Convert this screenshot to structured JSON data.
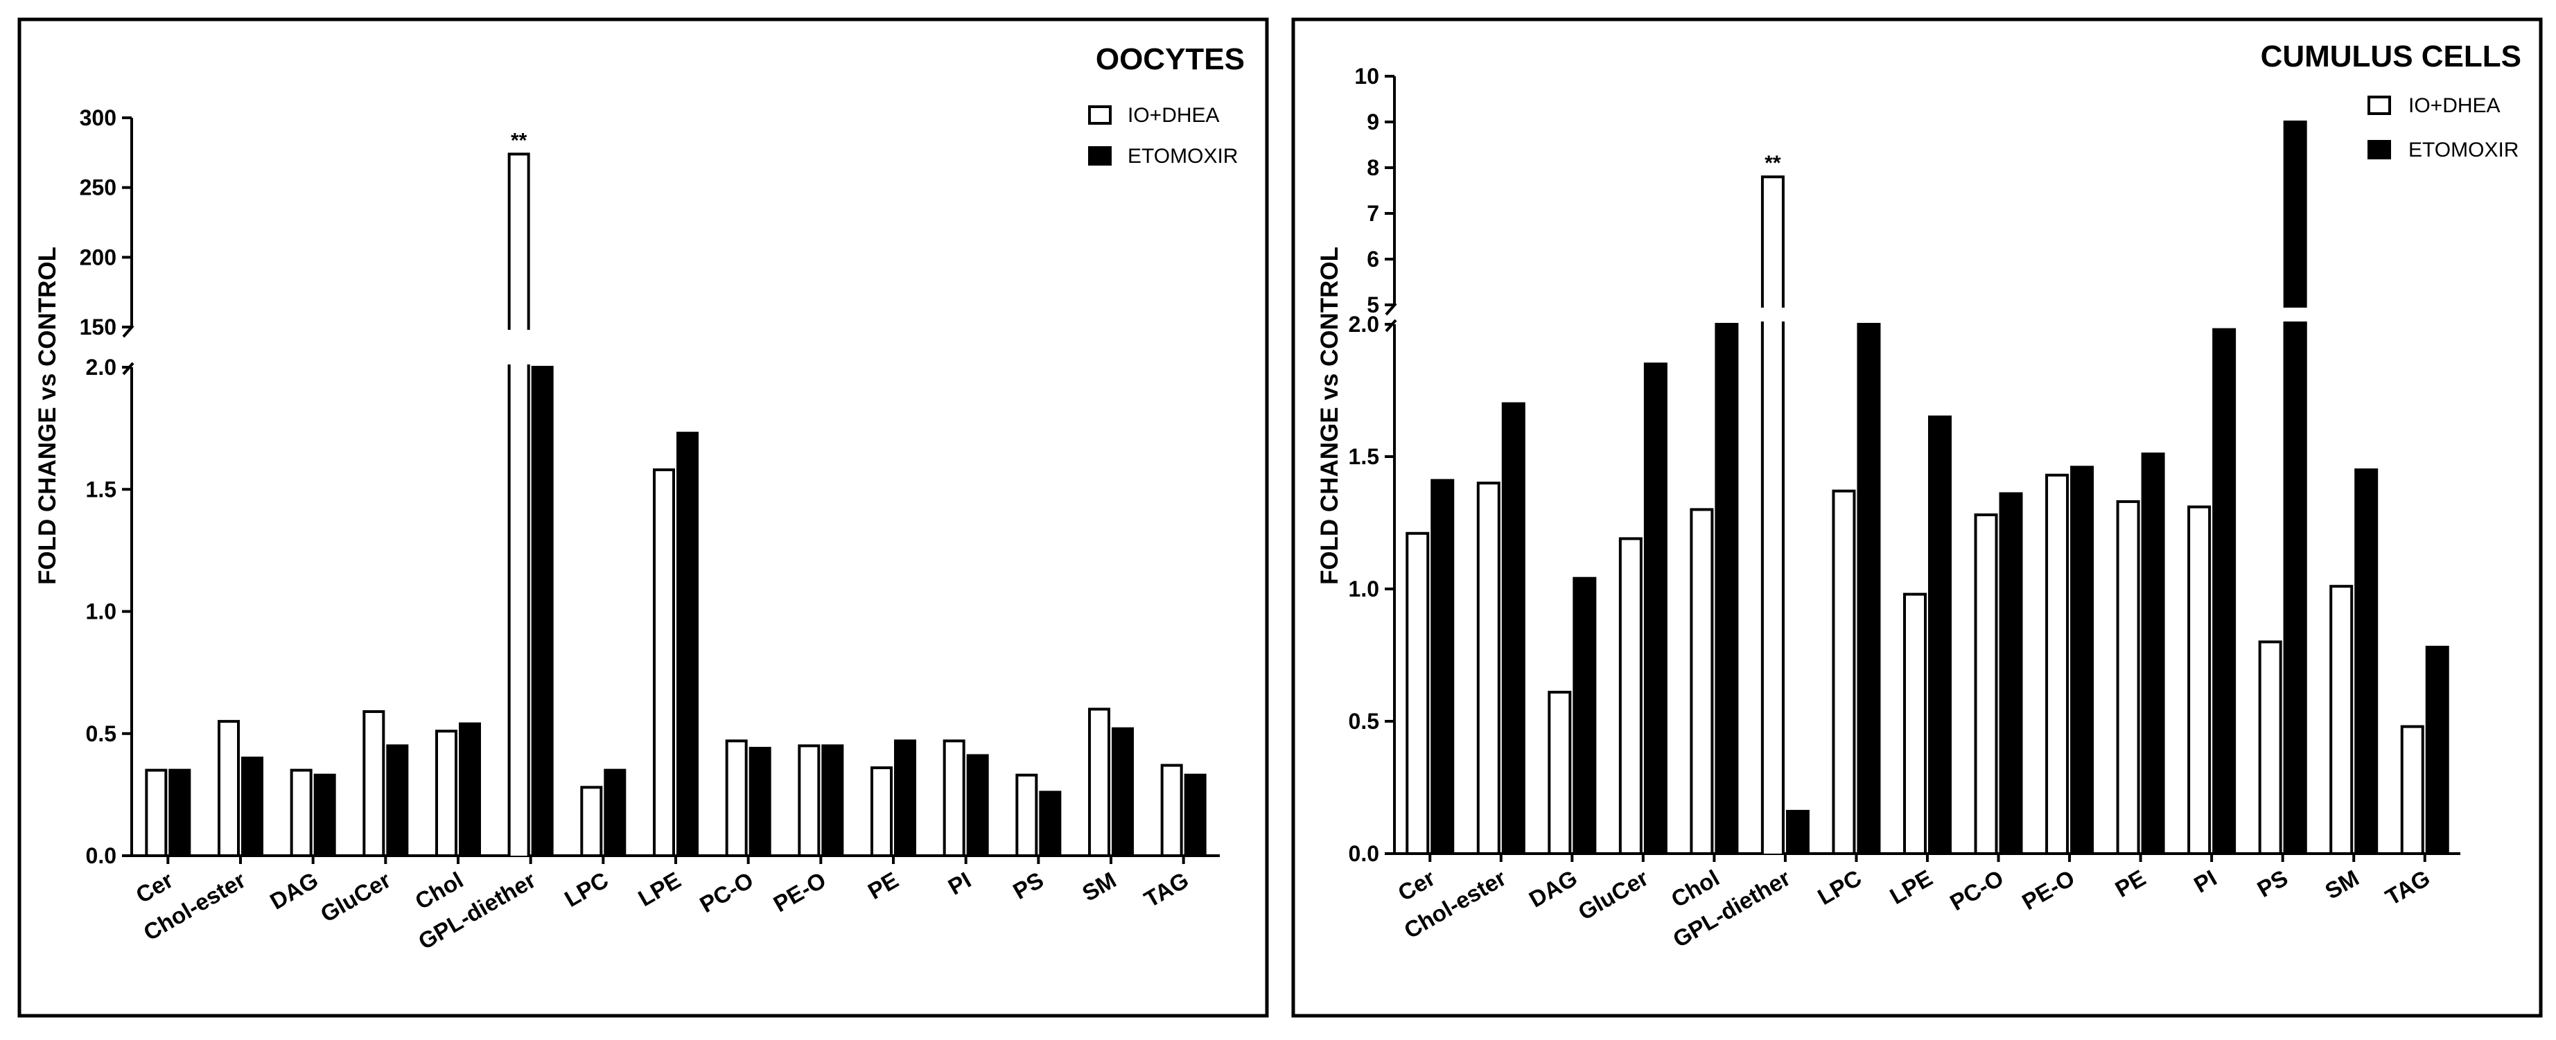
{
  "chart_data": [
    {
      "type": "bar",
      "title": "OOCYTES",
      "xlabel": "",
      "ylabel": "FOLD CHANGE vs CONTROL",
      "categories": [
        "Cer",
        "Chol-ester",
        "DAG",
        "GluCer",
        "Chol",
        "GPL-diether",
        "LPC",
        "LPE",
        "PC-O",
        "PE-O",
        "PE",
        "PI",
        "PS",
        "SM",
        "TAG"
      ],
      "series": [
        {
          "name": "IO+DHEA",
          "fill": "#ffffff",
          "values": [
            0.35,
            0.55,
            0.35,
            0.59,
            0.51,
            274,
            0.28,
            1.58,
            0.47,
            0.45,
            0.36,
            0.47,
            0.33,
            0.6,
            0.37
          ]
        },
        {
          "name": "ETOMOXIR",
          "fill": "#000000",
          "values": [
            0.35,
            0.4,
            0.33,
            0.45,
            0.54,
            2.0,
            0.35,
            1.73,
            0.44,
            0.45,
            0.47,
            0.41,
            0.26,
            0.52,
            0.33
          ]
        }
      ],
      "y_axis": {
        "broken": true,
        "lower": {
          "range": [
            0,
            2.0
          ],
          "ticks": [
            "0.0",
            "0.5",
            "1.0",
            "1.5",
            "2.0"
          ]
        },
        "upper": {
          "range": [
            150,
            300
          ],
          "ticks": [
            "150",
            "200",
            "250",
            "300"
          ]
        }
      },
      "annotations": [
        {
          "category": "GPL-diether",
          "series": "IO+DHEA",
          "text": "**"
        }
      ],
      "legend_position": "top-right"
    },
    {
      "type": "bar",
      "title": "CUMULUS CELLS",
      "xlabel": "",
      "ylabel": "FOLD CHANGE vs CONTROL",
      "categories": [
        "Cer",
        "Chol-ester",
        "DAG",
        "GluCer",
        "Chol",
        "GPL-diether",
        "LPC",
        "LPE",
        "PC-O",
        "PE-O",
        "PE",
        "PI",
        "PS",
        "SM",
        "TAG"
      ],
      "series": [
        {
          "name": "IO+DHEA",
          "fill": "#ffffff",
          "values": [
            1.21,
            1.4,
            0.61,
            1.19,
            1.3,
            7.8,
            1.37,
            0.98,
            1.28,
            1.43,
            1.33,
            1.31,
            0.8,
            1.01,
            0.48
          ]
        },
        {
          "name": "ETOMOXIR",
          "fill": "#000000",
          "values": [
            1.41,
            1.7,
            1.04,
            1.85,
            2.0,
            0.16,
            2.0,
            1.65,
            1.36,
            1.46,
            1.51,
            1.98,
            9.0,
            1.45,
            0.78
          ]
        }
      ],
      "y_axis": {
        "broken": true,
        "lower": {
          "range": [
            0,
            2.0
          ],
          "ticks": [
            "0.0",
            "0.5",
            "1.0",
            "1.5",
            "2.0"
          ]
        },
        "upper": {
          "range": [
            5,
            10
          ],
          "ticks": [
            "5",
            "6",
            "7",
            "8",
            "9",
            "10"
          ]
        }
      },
      "annotations": [
        {
          "category": "GPL-diether",
          "series": "IO+DHEA",
          "text": "**"
        }
      ],
      "legend_position": "top-right"
    }
  ]
}
